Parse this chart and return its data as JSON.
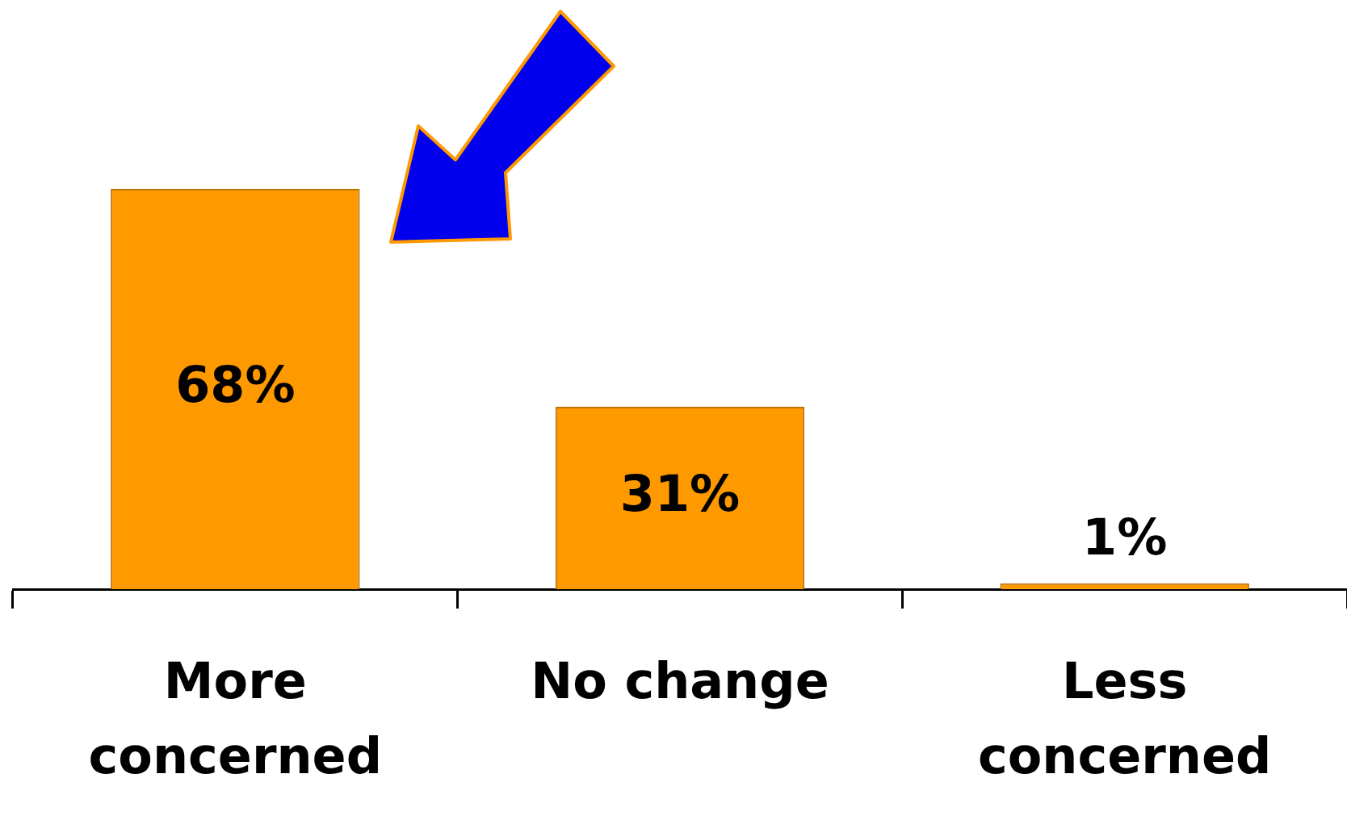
{
  "chart_data": {
    "type": "bar",
    "categories": [
      "More concerned",
      "No change",
      "Less concerned"
    ],
    "values": [
      68,
      31,
      1
    ],
    "value_labels": [
      "68%",
      "31%",
      "1%"
    ],
    "color": "#ff9900",
    "grid": false,
    "legend": false
  }
}
